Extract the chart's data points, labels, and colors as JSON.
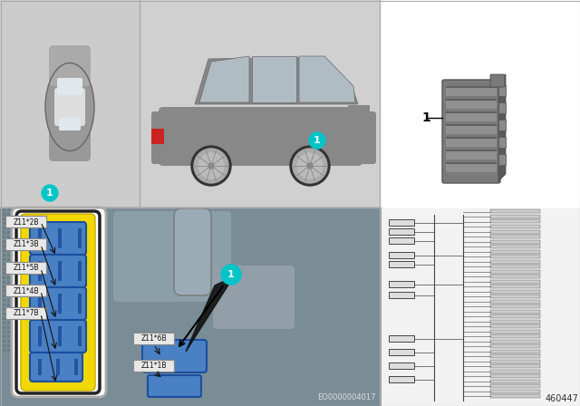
{
  "bg_color": "#ffffff",
  "panel_top_left_bg": "#cccccc",
  "panel_top_mid_bg": "#d0d0d0",
  "panel_top_right_bg": "#ffffff",
  "panel_bottom_left_bg": "#7a8c95",
  "panel_bottom_right_bg": "#f5f5f5",
  "callout_color": "#00c4c8",
  "callout_text_color": "#ffffff",
  "connector_body_color": "#f0d800",
  "connector_plug_color": "#4a80c4",
  "connector_outline": "#222222",
  "connector_white_bg": "#ffffff",
  "module_color": "#888888",
  "wiring_color": "#444444",
  "label_bg": "#e8e8e8",
  "label_border": "#999999",
  "bottom_num": "EO0000004017",
  "corner_num": "460447",
  "connector_labels": [
    "Z11*2B",
    "Z11*3B",
    "Z11*5B",
    "Z11*4B",
    "Z11*7B",
    "Z11*6B",
    "Z11*1B"
  ],
  "panel_divider_color": "#aaaaaa",
  "car_body_color": "#888888",
  "car_top_color": "#cccccc",
  "wheel_color": "#333333",
  "wheel_inner_color": "#bbbbbb",
  "engine_detail_color": "#9aabb5",
  "arrow_color": "#000000",
  "label_text_color": "#111111",
  "part_num_color": "#000000",
  "eo_text_color": "#cccccc"
}
